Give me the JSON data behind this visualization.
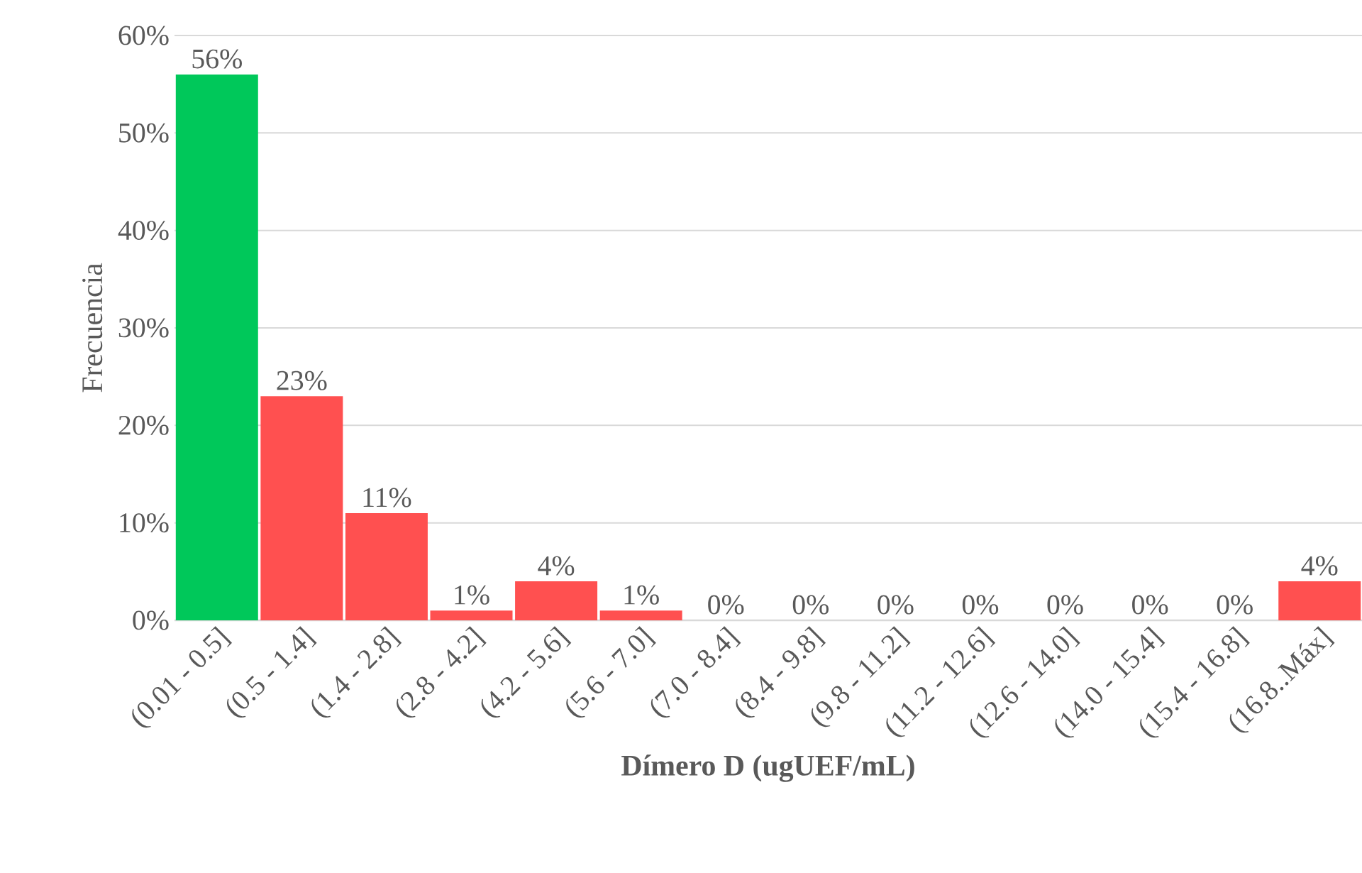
{
  "chart_data": {
    "type": "bar",
    "xlabel": "Dímero D (ugUEF/mL)",
    "ylabel": "Frecuencia",
    "categories": [
      "(0.01 - 0.5]",
      "(0.5 - 1.4]",
      "(1.4 - 2.8]",
      "(2.8 - 4.2]",
      "(4.2 - 5.6]",
      "(5.6 - 7.0]",
      "(7.0 - 8.4]",
      "(8.4 - 9.8]",
      "(9.8 - 11.2]",
      "(11.2 - 12.6]",
      "(12.6 - 14.0]",
      "(14.0 - 15.4]",
      "(15.4 - 16.8]",
      "(16.8..Máx]"
    ],
    "values": [
      56,
      23,
      11,
      1,
      4,
      1,
      0,
      0,
      0,
      0,
      0,
      0,
      0,
      4
    ],
    "colors": [
      "#00c85a",
      "#ff5050",
      "#ff5050",
      "#ff5050",
      "#ff5050",
      "#ff5050",
      "#ff5050",
      "#ff5050",
      "#ff5050",
      "#ff5050",
      "#ff5050",
      "#ff5050",
      "#ff5050",
      "#ff5050"
    ],
    "value_labels": [
      "56%",
      "23%",
      "11%",
      "1%",
      "4%",
      "1%",
      "0%",
      "0%",
      "0%",
      "0%",
      "0%",
      "0%",
      "0%",
      "4%"
    ],
    "ylim": [
      0,
      60
    ],
    "yticks": [
      {
        "value": 0,
        "label": "0%"
      },
      {
        "value": 10,
        "label": "10%"
      },
      {
        "value": 20,
        "label": "20%"
      },
      {
        "value": 30,
        "label": "30%"
      },
      {
        "value": 40,
        "label": "40%"
      },
      {
        "value": 50,
        "label": "50%"
      },
      {
        "value": 60,
        "label": "60%"
      }
    ],
    "grid": "y"
  }
}
